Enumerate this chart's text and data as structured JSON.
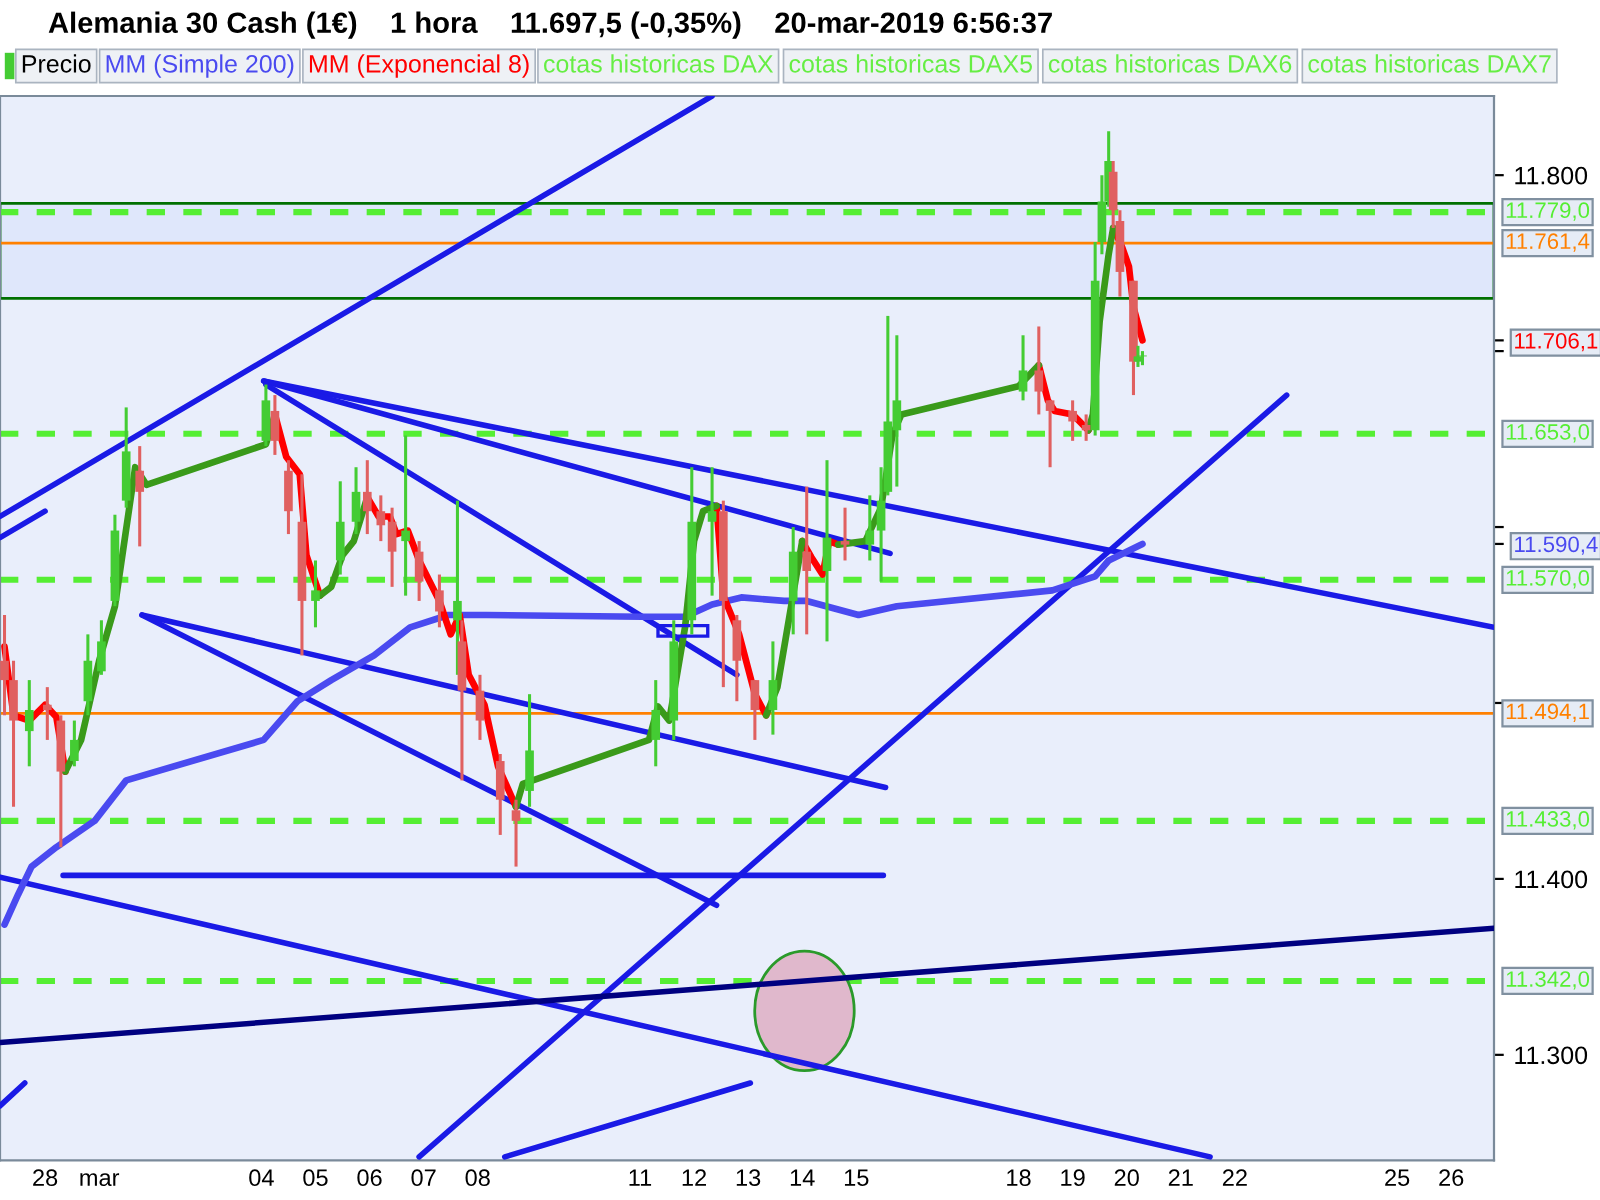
{
  "chart_data": {
    "type": "candlestick",
    "title": "Alemania 30 Cash (1€)    1 hora    11.697,5 (-0,35%)    20-mar-2019 6:56:37",
    "legend": "top left",
    "grid": false,
    "xlim": [
      "2019-02-27T04:00",
      "2019-03-26T19:00"
    ],
    "ylim": [
      11240,
      11845
    ],
    "xticks": [
      {
        "value": "2019-02-28",
        "label": "28"
      },
      {
        "value": "2019-03-01",
        "label": "mar"
      },
      {
        "value": "2019-03-04",
        "label": "04"
      },
      {
        "value": "2019-03-05",
        "label": "05"
      },
      {
        "value": "2019-03-06",
        "label": "06"
      },
      {
        "value": "2019-03-07",
        "label": "07"
      },
      {
        "value": "2019-03-08",
        "label": "08"
      },
      {
        "value": "2019-03-11",
        "label": "11"
      },
      {
        "value": "2019-03-12",
        "label": "12"
      },
      {
        "value": "2019-03-13",
        "label": "13"
      },
      {
        "value": "2019-03-14",
        "label": "14"
      },
      {
        "value": "2019-03-15",
        "label": "15"
      },
      {
        "value": "2019-03-18",
        "label": "18"
      },
      {
        "value": "2019-03-19",
        "label": "19"
      },
      {
        "value": "2019-03-20",
        "label": "20"
      },
      {
        "value": "2019-03-21",
        "label": "21"
      },
      {
        "value": "2019-03-22",
        "label": "22"
      },
      {
        "value": "2019-03-25",
        "label": "25"
      },
      {
        "value": "2019-03-26",
        "label": "26"
      }
    ],
    "yticks": [
      {
        "value": 11300,
        "label": "11.300"
      },
      {
        "value": 11400,
        "label": "11.400"
      },
      {
        "value": 11500,
        "label": null
      },
      {
        "value": 11590.4,
        "label": "11.590,4"
      },
      {
        "value": 11600,
        "label": null
      },
      {
        "value": 11700,
        "label": null
      },
      {
        "value": 11706.1,
        "label": "11.706,1"
      },
      {
        "value": 11800,
        "label": "11.800"
      }
    ],
    "bands": [
      {
        "axis": "y",
        "from": 11730,
        "to": 11784,
        "color": "#dfe7fb"
      }
    ],
    "ref_lines": [
      {
        "axis": "y",
        "value": 11779,
        "label": "11.779,0",
        "color": "#55ee33",
        "line_style": "dashed"
      },
      {
        "axis": "y",
        "value": 11761.4,
        "label": "11.761,4",
        "color": "#ff8000",
        "line_style": "solid"
      },
      {
        "axis": "y",
        "value": 11653,
        "label": "11.653,0",
        "color": "#55ee33",
        "line_style": "dashed"
      },
      {
        "axis": "y",
        "value": 11570,
        "label": "11.570,0",
        "color": "#55ee33",
        "line_style": "dashed"
      },
      {
        "axis": "y",
        "value": 11494.1,
        "label": "11.494,1",
        "color": "#ff8000",
        "line_style": "solid"
      },
      {
        "axis": "y",
        "value": 11433,
        "label": "11.433,0",
        "color": "#55ee33",
        "line_style": "dashed"
      },
      {
        "axis": "y",
        "value": 11342,
        "label": "11.342,0",
        "color": "#55ee33",
        "line_style": "dashed"
      }
    ],
    "annotations": [
      "cotas historicas DAX",
      "cotas historicas DAX5",
      "cotas historicas DAX6",
      "cotas historicas DAX7"
    ],
    "series": [
      {
        "name": "Precio",
        "x": [
          "2019-02-27T06:00",
          "2019-02-27T10:00",
          "2019-02-27T17:00",
          "2019-02-28T01:00",
          "2019-02-28T07:00",
          "2019-02-28T13:00",
          "2019-02-28T19:00",
          "2019-03-01T01:00",
          "2019-03-01T07:00",
          "2019-03-01T12:00",
          "2019-03-01T18:00",
          "2019-03-04T02:00",
          "2019-03-04T06:00",
          "2019-03-04T12:00",
          "2019-03-04T18:00",
          "2019-03-05T00:00",
          "2019-03-05T11:00",
          "2019-03-05T18:00",
          "2019-03-05T23:00",
          "2019-03-06T05:00",
          "2019-03-06T10:00",
          "2019-03-06T16:00",
          "2019-03-06T22:00",
          "2019-03-07T07:00",
          "2019-03-07T15:00",
          "2019-03-07T17:00",
          "2019-03-08T01:00",
          "2019-03-08T10:00",
          "2019-03-08T17:00",
          "2019-03-08T23:00",
          "2019-03-11T07:00",
          "2019-03-11T15:00",
          "2019-03-11T23:00",
          "2019-03-12T08:00",
          "2019-03-12T13:00",
          "2019-03-12T19:00",
          "2019-03-13T03:00",
          "2019-03-13T11:00",
          "2019-03-13T20:00",
          "2019-03-14T02:00",
          "2019-03-14T11:00",
          "2019-03-14T19:00",
          "2019-03-15T06:00",
          "2019-03-15T11:00",
          "2019-03-15T14:00",
          "2019-03-15T18:00",
          "2019-03-18T02:00",
          "2019-03-18T09:00",
          "2019-03-18T14:00",
          "2019-03-19T00:00",
          "2019-03-19T06:00",
          "2019-03-19T10:00",
          "2019-03-19T13:00",
          "2019-03-19T16:00",
          "2019-03-19T18:00",
          "2019-03-19T21:00",
          "2019-03-20T03:00",
          "2019-03-20T05:00",
          "2019-03-20T07:00"
        ],
        "ohlc": [
          [
            11524,
            11550,
            11493,
            11513
          ],
          [
            11513,
            11524,
            11441,
            11490
          ],
          [
            11484,
            11513,
            11464,
            11496
          ],
          [
            11499,
            11509,
            11479,
            11496
          ],
          [
            11490,
            11493,
            11418,
            11461
          ],
          [
            11467,
            11490,
            11464,
            11479
          ],
          [
            11501,
            11539,
            11493,
            11524
          ],
          [
            11518,
            11547,
            11516,
            11535
          ],
          [
            11558,
            11607,
            11555,
            11598
          ],
          [
            11615,
            11668,
            11611,
            11643
          ],
          [
            11632,
            11646,
            11589,
            11620
          ],
          [
            11649,
            11681,
            11646,
            11672
          ],
          [
            11666,
            11675,
            11641,
            11649
          ],
          [
            11632,
            11638,
            11596,
            11609
          ],
          [
            11603,
            11630,
            11527,
            11558
          ],
          [
            11558,
            11581,
            11543,
            11564
          ],
          [
            11581,
            11626,
            11573,
            11603
          ],
          [
            11603,
            11634,
            11596,
            11620
          ],
          [
            11620,
            11638,
            11596,
            11609
          ],
          [
            11609,
            11618,
            11592,
            11601
          ],
          [
            11603,
            11611,
            11566,
            11586
          ],
          [
            11592,
            11652,
            11561,
            11598
          ],
          [
            11586,
            11592,
            11558,
            11569
          ],
          [
            11564,
            11573,
            11543,
            11552
          ],
          [
            11547,
            11615,
            11516,
            11558
          ],
          [
            11535,
            11547,
            11456,
            11507
          ],
          [
            11507,
            11516,
            11479,
            11490
          ],
          [
            11467,
            11471,
            11425,
            11445
          ],
          [
            11439,
            11445,
            11407,
            11433
          ],
          [
            11450,
            11505,
            11441,
            11473
          ],
          [
            11479,
            11513,
            11464,
            11496
          ],
          [
            11490,
            11547,
            11479,
            11535
          ],
          [
            11547,
            11634,
            11539,
            11603
          ],
          [
            11603,
            11634,
            11561,
            11609
          ],
          [
            11609,
            11615,
            11509,
            11558
          ],
          [
            11547,
            11550,
            11501,
            11524
          ],
          [
            11513,
            11513,
            11479,
            11496
          ],
          [
            11496,
            11535,
            11482,
            11513
          ],
          [
            11558,
            11600,
            11539,
            11586
          ],
          [
            11586,
            11623,
            11539,
            11575
          ],
          [
            11575,
            11638,
            11535,
            11594
          ],
          [
            11592,
            11611,
            11581,
            11590
          ],
          [
            11590,
            11618,
            11581,
            11598
          ],
          [
            11598,
            11634,
            11569,
            11615
          ],
          [
            11620,
            11720,
            11618,
            11660
          ],
          [
            11655,
            11709,
            11623,
            11672
          ],
          [
            11677,
            11709,
            11672,
            11689
          ],
          [
            11689,
            11714,
            11664,
            11677
          ],
          [
            11672,
            11672,
            11634,
            11666
          ],
          [
            11666,
            11672,
            11649,
            11660
          ],
          [
            11658,
            11664,
            11649,
            11655
          ],
          [
            11655,
            11762,
            11652,
            11740
          ],
          [
            11762,
            11800,
            11755,
            11785
          ],
          [
            11785,
            11825,
            11782,
            11808
          ],
          [
            11802,
            11808,
            11770,
            11780
          ],
          [
            11774,
            11780,
            11731,
            11745
          ],
          [
            11740,
            11740,
            11675,
            11694
          ],
          [
            11694,
            11703,
            11691,
            11697
          ],
          [
            11697,
            11700,
            11692,
            11697.5
          ]
        ],
        "colors": [
          "#e06060",
          "#e06060",
          "#44cc33",
          "#e06060",
          "#e06060",
          "#44cc33",
          "#44cc33",
          "#44cc33",
          "#44cc33",
          "#44cc33",
          "#e06060",
          "#44cc33",
          "#e06060",
          "#e06060",
          "#e06060",
          "#44cc33",
          "#44cc33",
          "#44cc33",
          "#e06060",
          "#e06060",
          "#e06060",
          "#44cc33",
          "#e06060",
          "#e06060",
          "#44cc33",
          "#e06060",
          "#e06060",
          "#e06060",
          "#e06060",
          "#44cc33",
          "#44cc33",
          "#44cc33",
          "#44cc33",
          "#44cc33",
          "#e06060",
          "#e06060",
          "#e06060",
          "#44cc33",
          "#44cc33",
          "#e06060",
          "#44cc33",
          "#e06060",
          "#44cc33",
          "#44cc33",
          "#44cc33",
          "#44cc33",
          "#44cc33",
          "#e06060",
          "#e06060",
          "#e06060",
          "#e06060",
          "#44cc33",
          "#44cc33",
          "#44cc33",
          "#e06060",
          "#e06060",
          "#e06060",
          "#44cc33",
          "#44cc33"
        ]
      },
      {
        "name": "MM (Simple 200)",
        "type": "line",
        "color": "#4a4af0",
        "x": [
          "2019-02-27T06:00",
          "2019-02-27T12:00",
          "2019-02-27T18:00",
          "2019-02-28T05:00",
          "2019-02-28T22:00",
          "2019-03-01T12:00",
          "2019-03-04T01:00",
          "2019-03-04T16:00",
          "2019-03-05T07:00",
          "2019-03-06T02:00",
          "2019-03-06T18:00",
          "2019-03-07T11:00",
          "2019-03-08T04:00",
          "2019-03-11T01:00",
          "2019-03-11T20:00",
          "2019-03-12T08:00",
          "2019-03-12T21:00",
          "2019-03-13T16:00",
          "2019-03-14T02:00",
          "2019-03-15T01:00",
          "2019-03-15T18:00",
          "2019-03-18T15:00",
          "2019-03-19T10:00",
          "2019-03-19T16:00",
          "2019-03-20T07:00"
        ],
        "values": [
          11374,
          11391,
          11407,
          11418,
          11433,
          11456,
          11479,
          11501,
          11513,
          11527,
          11543,
          11550,
          11550,
          11549,
          11549,
          11556,
          11560,
          11558,
          11558,
          11550,
          11555,
          11564,
          11572,
          11581,
          11590.4
        ]
      },
      {
        "name": "MM (Exponencial 8)",
        "type": "line",
        "color": "#ff0000",
        "x": [
          "2019-02-27T06:00",
          "2019-02-27T10:00",
          "2019-02-27T17:00",
          "2019-02-28T00:00",
          "2019-02-28T05:00",
          "2019-02-28T09:00",
          "2019-02-28T16:00",
          "2019-03-01T00:00",
          "2019-03-01T07:00",
          "2019-03-01T16:00",
          "2019-03-01T21:00",
          "2019-03-04T02:00",
          "2019-03-04T06:00",
          "2019-03-04T11:00",
          "2019-03-04T17:00",
          "2019-03-04T20:00",
          "2019-03-05T02:00",
          "2019-03-05T07:00",
          "2019-03-05T12:00",
          "2019-03-05T17:00",
          "2019-03-05T23:00",
          "2019-03-06T04:00",
          "2019-03-06T09:00",
          "2019-03-06T12:00",
          "2019-03-06T17:00",
          "2019-03-06T22:00",
          "2019-03-07T07:00",
          "2019-03-07T12:00",
          "2019-03-07T16:00",
          "2019-03-07T20:00",
          "2019-03-08T03:00",
          "2019-03-08T09:00",
          "2019-03-08T17:00",
          "2019-03-08T20:00",
          "2019-03-11T04:00",
          "2019-03-11T08:00",
          "2019-03-11T13:00",
          "2019-03-11T20:00",
          "2019-03-12T00:00",
          "2019-03-12T04:00",
          "2019-03-12T10:00",
          "2019-03-12T13:00",
          "2019-03-12T20:00",
          "2019-03-13T03:00",
          "2019-03-13T08:00",
          "2019-03-13T13:00",
          "2019-03-14T00:00",
          "2019-03-14T04:00",
          "2019-03-14T09:00",
          "2019-03-14T12:00",
          "2019-03-14T16:00",
          "2019-03-15T04:00",
          "2019-03-15T11:00",
          "2019-03-15T16:00",
          "2019-03-15T20:00",
          "2019-03-18T00:00",
          "2019-03-18T09:00",
          "2019-03-18T13:00",
          "2019-03-18T16:00",
          "2019-03-19T00:00",
          "2019-03-19T07:00",
          "2019-03-19T09:00",
          "2019-03-19T12:00",
          "2019-03-19T16:00",
          "2019-03-19T18:00",
          "2019-03-19T22:00",
          "2019-03-20T01:00",
          "2019-03-20T03:00",
          "2019-03-20T07:00"
        ],
        "values": [
          11532,
          11493,
          11490,
          11499,
          11492,
          11461,
          null,
          null,
          null,
          null,
          null,
          null,
          11664,
          11640,
          11630,
          11584,
          11561,
          null,
          null,
          null,
          11617,
          11606,
          11606,
          11596,
          11598,
          11581,
          11558,
          11539,
          11550,
          11516,
          11499,
          11464,
          11441,
          null,
          null,
          null,
          null,
          null,
          null,
          null,
          11612,
          11561,
          11539,
          11505,
          11493,
          null,
          11592,
          11583,
          11573,
          11592,
          11590,
          null,
          null,
          null,
          null,
          null,
          11692,
          11672,
          11666,
          11664,
          11655,
          null,
          null,
          null,
          11770,
          11759,
          11748,
          11725,
          11706.1
        ]
      },
      {
        "type": "line",
        "color": "#3a9a1a",
        "x": [
          "2019-02-28T09:00",
          "2019-02-28T16:00",
          "2019-03-01T00:00",
          "2019-03-01T07:00",
          "2019-03-01T16:00",
          "2019-03-01T21:00",
          "2019-03-04T02:00",
          "2019-03-04T06:00"
        ],
        "values": [
          11461,
          11479,
          11524,
          11555,
          11634,
          11624,
          11647,
          11664
        ]
      },
      {
        "type": "line",
        "color": "#3a9a1a",
        "x": [
          "2019-03-05T02:00",
          "2019-03-05T07:00",
          "2019-03-05T12:00",
          "2019-03-05T17:00",
          "2019-03-05T23:00"
        ],
        "values": [
          11561,
          11566,
          11584,
          11592,
          11617
        ]
      },
      {
        "type": "line",
        "color": "#3a9a1a",
        "x": [
          "2019-03-08T17:00",
          "2019-03-08T20:00",
          "2019-03-11T04:00",
          "2019-03-11T08:00",
          "2019-03-11T13:00",
          "2019-03-11T20:00",
          "2019-03-12T00:00",
          "2019-03-12T04:00",
          "2019-03-12T10:00"
        ],
        "values": [
          11441,
          11454,
          11479,
          11498,
          11490,
          11543,
          11592,
          11609,
          11612
        ]
      },
      {
        "type": "line",
        "color": "#3a9a1a",
        "x": [
          "2019-03-13T08:00",
          "2019-03-13T13:00",
          "2019-03-14T00:00"
        ],
        "values": [
          11493,
          11509,
          11592
        ]
      },
      {
        "type": "line",
        "color": "#3a9a1a",
        "x": [
          "2019-03-14T16:00",
          "2019-03-15T04:00",
          "2019-03-15T11:00",
          "2019-03-15T16:00",
          "2019-03-15T20:00",
          "2019-03-18T00:00",
          "2019-03-18T09:00"
        ],
        "values": [
          11590,
          11592,
          11611,
          11652,
          11664,
          11680,
          11692
        ]
      },
      {
        "type": "line",
        "color": "#3a9a1a",
        "x": [
          "2019-03-19T07:00",
          "2019-03-19T09:00",
          "2019-03-19T12:00",
          "2019-03-19T16:00",
          "2019-03-19T18:00"
        ],
        "values": [
          11655,
          11664,
          11717,
          11755,
          11770
        ]
      },
      {
        "type": "line",
        "color": "#1a1ae6",
        "x": [
          "2019-02-27T04:00",
          "2019-03-12T08:00"
        ],
        "values": [
          11606,
          11845
        ]
      },
      {
        "type": "line",
        "color": "#1a1ae6",
        "x": [
          "2019-02-27T04:00",
          "2019-02-28T00:00"
        ],
        "values": [
          11594,
          11609
        ]
      },
      {
        "type": "line",
        "color": "#1a1ae6",
        "x": [
          "2019-03-04T01:00",
          "2019-03-26T19:00"
        ],
        "values": [
          11683,
          11543
        ]
      },
      {
        "type": "line",
        "color": "#1a1ae6",
        "x": [
          "2019-03-04T01:00",
          "2019-03-15T15:00"
        ],
        "values": [
          11683,
          11585
        ]
      },
      {
        "type": "line",
        "color": "#1a1ae6",
        "x": [
          "2019-03-04T02:00",
          "2019-03-12T19:00"
        ],
        "values": [
          11681,
          11516
        ]
      },
      {
        "type": "line",
        "color": "#1a1ae6",
        "x": [
          "2019-03-01T19:00",
          "2019-03-15T13:00"
        ],
        "values": [
          11550,
          11452
        ]
      },
      {
        "type": "line",
        "color": "#1a1ae6",
        "x": [
          "2019-03-01T19:00",
          "2019-03-12T10:00"
        ],
        "values": [
          11550,
          11385
        ]
      },
      {
        "type": "line",
        "color": "#1a1ae6",
        "x": [
          "2019-02-28T08:00",
          "2019-03-15T12:00"
        ],
        "values": [
          11402,
          11402
        ]
      },
      {
        "type": "line",
        "color": "#1a1ae6",
        "x": [
          "2019-02-27T04:00",
          "2019-03-21T13:00"
        ],
        "values": [
          11401,
          11242
        ]
      },
      {
        "type": "line",
        "color": "#1a1ae6",
        "x": [
          "2019-03-06T22:00",
          "2019-03-22T23:00"
        ],
        "values": [
          11242,
          11675
        ]
      },
      {
        "type": "line",
        "color": "#000080",
        "x": [
          "2019-02-27T04:00",
          "2019-03-26T19:00"
        ],
        "values": [
          11307,
          11372
        ]
      },
      {
        "type": "line",
        "color": "#1a1ae6",
        "x": [
          "2019-02-27T04:00",
          "2019-02-27T15:00"
        ],
        "values": [
          11271,
          11284
        ]
      },
      {
        "type": "line",
        "color": "#1a1ae6",
        "x": [
          "2019-03-08T12:00",
          "2019-03-13T01:00"
        ],
        "values": [
          11242,
          11284
        ]
      }
    ]
  }
}
